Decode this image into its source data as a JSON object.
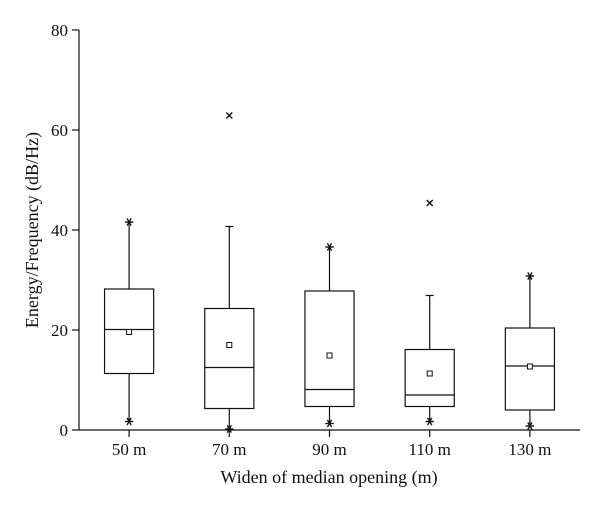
{
  "chart_data": {
    "type": "box",
    "title": "",
    "xlabel": "Widen of median opening (m)",
    "ylabel": "Energy/Frequency (dB/Hz)",
    "ylim": [
      0,
      80
    ],
    "yticks": [
      0,
      20,
      40,
      60,
      80
    ],
    "ytick_labels": [
      "0",
      "20",
      "40",
      "60",
      "80"
    ],
    "grid": false,
    "categories": [
      "50 m",
      "70 m",
      "90 m",
      "110 m",
      "130 m"
    ],
    "boxes": [
      {
        "category": "50 m",
        "q1": 11.3,
        "median": 20.1,
        "q3": 28.2,
        "mean": 19.6,
        "whisker_low": 1.7,
        "whisker_high": 41.6,
        "min_marker": 1.7,
        "max_marker": 41.6,
        "outliers": []
      },
      {
        "category": "70 m",
        "q1": 4.3,
        "median": 12.5,
        "q3": 24.3,
        "mean": 17.0,
        "whisker_low": 0.2,
        "whisker_high": 40.7,
        "min_marker": 0.2,
        "max_marker": null,
        "outliers": [
          62.9
        ]
      },
      {
        "category": "90 m",
        "q1": 4.7,
        "median": 8.1,
        "q3": 27.8,
        "mean": 14.9,
        "whisker_low": 1.3,
        "whisker_high": 36.6,
        "min_marker": 1.3,
        "max_marker": 36.6,
        "outliers": []
      },
      {
        "category": "110 m",
        "q1": 4.7,
        "median": 7.0,
        "q3": 16.1,
        "mean": 11.3,
        "whisker_low": 1.7,
        "whisker_high": 26.9,
        "min_marker": 1.7,
        "max_marker": null,
        "outliers": [
          45.4
        ]
      },
      {
        "category": "130 m",
        "q1": 4.0,
        "median": 12.8,
        "q3": 20.4,
        "mean": 12.7,
        "whisker_low": 0.8,
        "whisker_high": 30.8,
        "min_marker": 0.8,
        "max_marker": 30.8,
        "outliers": []
      }
    ]
  }
}
